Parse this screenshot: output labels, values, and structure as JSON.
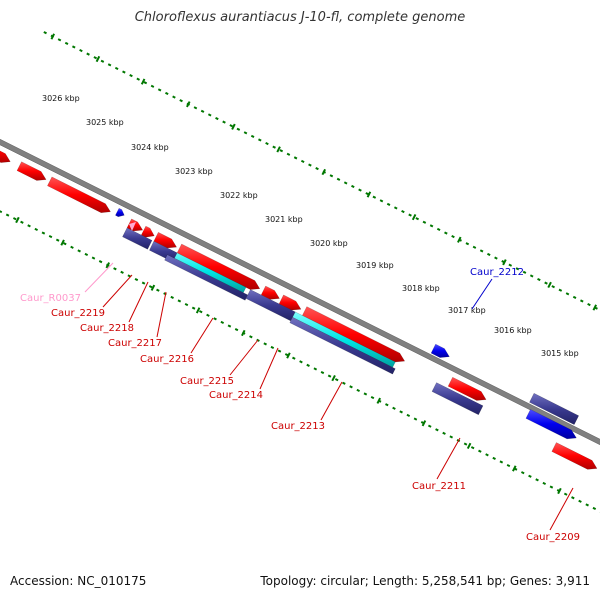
{
  "title": "Chloroflexus aurantiacus J-10-fl, complete genome",
  "accession": "Accession: NC_010175",
  "stats": "Topology: circular; Length: 5,258,541 bp; Genes: 3,911",
  "colors": {
    "backbone": "#808080",
    "forward_gene": "#ff0000",
    "reverse_gene": "#1010ee",
    "cds": "#3a3a90",
    "rna": "#ffaad0",
    "feature_cyan": "#00e6e6",
    "ticks": "#007700",
    "forward_label": "#cc0000",
    "reverse_label": "#0000cc",
    "rna_label": "#ff99cc"
  },
  "ticks": [
    "3026 kbp",
    "3025 kbp",
    "3024 kbp",
    "3023 kbp",
    "3022 kbp",
    "3021 kbp",
    "3020 kbp",
    "3019 kbp",
    "3018 kbp",
    "3017 kbp",
    "3016 kbp",
    "3015 kbp"
  ],
  "gene_labels": [
    {
      "text": "Caur_R0037",
      "kind": "rna"
    },
    {
      "text": "Caur_2219",
      "kind": "forward"
    },
    {
      "text": "Caur_2218",
      "kind": "forward"
    },
    {
      "text": "Caur_2217",
      "kind": "forward"
    },
    {
      "text": "Caur_2216",
      "kind": "forward"
    },
    {
      "text": "Caur_2215",
      "kind": "forward"
    },
    {
      "text": "Caur_2214",
      "kind": "forward"
    },
    {
      "text": "Caur_2213",
      "kind": "forward"
    },
    {
      "text": "Caur_2212",
      "kind": "reverse"
    },
    {
      "text": "Caur_2211",
      "kind": "forward"
    },
    {
      "text": "Caur_2209",
      "kind": "forward"
    }
  ]
}
